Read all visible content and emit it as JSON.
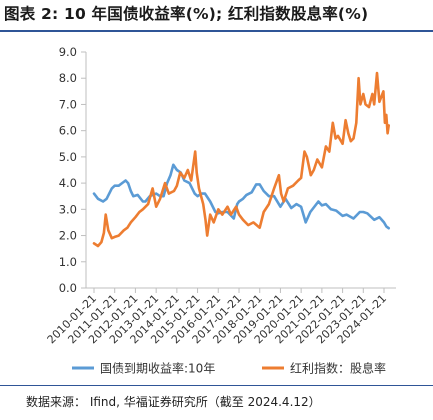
{
  "title": "图表 2: 10 年国债收益率(%); 红利指数股息率(%)",
  "source": "数据来源： Ifind, 华福证券研究所（截至 2024.4.12）",
  "colors": {
    "bond": "#5b9bd5",
    "dividend": "#ed7d31",
    "axis": "#bfbfbf",
    "rule": "#2f5597"
  },
  "chart_data": {
    "type": "line",
    "title": "",
    "xlabel": "",
    "ylabel": "",
    "ylim": [
      0,
      9
    ],
    "yticks": [
      "0.0",
      "1.0",
      "2.0",
      "3.0",
      "4.0",
      "5.0",
      "6.0",
      "7.0",
      "8.0",
      "9.0"
    ],
    "xticks": [
      "2010-01-21",
      "2011-01-21",
      "2012-01-21",
      "2013-01-21",
      "2014-01-21",
      "2015-01-21",
      "2016-01-21",
      "2017-01-21",
      "2018-01-21",
      "2019-01-21",
      "2020-01-21",
      "2021-01-21",
      "2022-01-21",
      "2023-01-21",
      "2024-01-21"
    ],
    "grid": false,
    "legend_position": "bottom",
    "series": [
      {
        "name": "国债到期收益率:10年",
        "color": "#5b9bd5",
        "points": [
          [
            "2010-01-21",
            3.6
          ],
          [
            "2010-04-01",
            3.4
          ],
          [
            "2010-07-01",
            3.3
          ],
          [
            "2010-09-01",
            3.4
          ],
          [
            "2010-12-01",
            3.8
          ],
          [
            "2011-01-21",
            3.9
          ],
          [
            "2011-04-01",
            3.9
          ],
          [
            "2011-06-01",
            4.0
          ],
          [
            "2011-08-01",
            4.1
          ],
          [
            "2011-09-15",
            4.0
          ],
          [
            "2011-11-01",
            3.7
          ],
          [
            "2011-12-15",
            3.5
          ],
          [
            "2012-03-01",
            3.55
          ],
          [
            "2012-06-01",
            3.3
          ],
          [
            "2012-07-15",
            3.3
          ],
          [
            "2012-10-01",
            3.5
          ],
          [
            "2013-01-21",
            3.6
          ],
          [
            "2013-04-01",
            3.5
          ],
          [
            "2013-06-01",
            3.5
          ],
          [
            "2013-08-01",
            4.0
          ],
          [
            "2013-10-01",
            4.3
          ],
          [
            "2013-11-20",
            4.7
          ],
          [
            "2014-01-21",
            4.5
          ],
          [
            "2014-04-01",
            4.4
          ],
          [
            "2014-06-01",
            4.1
          ],
          [
            "2014-09-01",
            4.0
          ],
          [
            "2014-12-01",
            3.6
          ],
          [
            "2015-01-21",
            3.5
          ],
          [
            "2015-04-01",
            3.6
          ],
          [
            "2015-06-01",
            3.6
          ],
          [
            "2015-09-01",
            3.3
          ],
          [
            "2015-12-01",
            2.9
          ],
          [
            "2016-01-21",
            2.85
          ],
          [
            "2016-04-01",
            2.9
          ],
          [
            "2016-07-01",
            2.9
          ],
          [
            "2016-10-20",
            2.65
          ],
          [
            "2016-12-20",
            3.2
          ],
          [
            "2017-01-21",
            3.3
          ],
          [
            "2017-04-01",
            3.4
          ],
          [
            "2017-06-01",
            3.55
          ],
          [
            "2017-09-01",
            3.65
          ],
          [
            "2017-11-20",
            3.95
          ],
          [
            "2018-01-21",
            3.95
          ],
          [
            "2018-04-01",
            3.7
          ],
          [
            "2018-07-01",
            3.5
          ],
          [
            "2018-10-01",
            3.5
          ],
          [
            "2019-01-21",
            3.1
          ],
          [
            "2019-04-20",
            3.4
          ],
          [
            "2019-08-01",
            3.05
          ],
          [
            "2019-11-01",
            3.2
          ],
          [
            "2020-01-21",
            3.1
          ],
          [
            "2020-04-10",
            2.5
          ],
          [
            "2020-07-01",
            2.9
          ],
          [
            "2020-11-20",
            3.3
          ],
          [
            "2021-01-21",
            3.15
          ],
          [
            "2021-04-01",
            3.2
          ],
          [
            "2021-07-01",
            3.0
          ],
          [
            "2021-10-01",
            2.95
          ],
          [
            "2022-01-21",
            2.75
          ],
          [
            "2022-04-01",
            2.8
          ],
          [
            "2022-08-01",
            2.65
          ],
          [
            "2022-11-20",
            2.9
          ],
          [
            "2023-01-21",
            2.9
          ],
          [
            "2023-04-01",
            2.85
          ],
          [
            "2023-08-01",
            2.6
          ],
          [
            "2023-11-01",
            2.7
          ],
          [
            "2024-01-21",
            2.5
          ],
          [
            "2024-03-01",
            2.35
          ],
          [
            "2024-04-12",
            2.28
          ]
        ]
      },
      {
        "name": "红利指数：股息率",
        "color": "#ed7d31",
        "points": [
          [
            "2010-01-21",
            1.7
          ],
          [
            "2010-04-01",
            1.6
          ],
          [
            "2010-06-01",
            1.75
          ],
          [
            "2010-07-15",
            2.1
          ],
          [
            "2010-08-15",
            2.8
          ],
          [
            "2010-10-01",
            2.2
          ],
          [
            "2010-12-01",
            1.9
          ],
          [
            "2011-01-21",
            1.95
          ],
          [
            "2011-04-01",
            2.0
          ],
          [
            "2011-07-01",
            2.2
          ],
          [
            "2011-09-01",
            2.3
          ],
          [
            "2011-11-01",
            2.5
          ],
          [
            "2012-01-21",
            2.7
          ],
          [
            "2012-04-01",
            2.9
          ],
          [
            "2012-06-01",
            3.0
          ],
          [
            "2012-09-01",
            3.2
          ],
          [
            "2012-11-20",
            3.8
          ],
          [
            "2013-01-21",
            3.1
          ],
          [
            "2013-04-01",
            3.4
          ],
          [
            "2013-06-25",
            4.0
          ],
          [
            "2013-09-01",
            3.6
          ],
          [
            "2013-12-01",
            3.7
          ],
          [
            "2014-01-21",
            3.9
          ],
          [
            "2014-03-20",
            4.4
          ],
          [
            "2014-06-01",
            4.2
          ],
          [
            "2014-08-01",
            4.5
          ],
          [
            "2014-10-01",
            4.1
          ],
          [
            "2014-12-10",
            5.2
          ],
          [
            "2015-01-05",
            4.4
          ],
          [
            "2015-02-15",
            3.8
          ],
          [
            "2015-05-01",
            3.2
          ],
          [
            "2015-06-10",
            2.6
          ],
          [
            "2015-07-10",
            2.0
          ],
          [
            "2015-09-01",
            2.8
          ],
          [
            "2015-11-01",
            2.5
          ],
          [
            "2016-01-21",
            3.0
          ],
          [
            "2016-04-01",
            2.8
          ],
          [
            "2016-07-01",
            3.1
          ],
          [
            "2016-09-01",
            2.8
          ],
          [
            "2016-12-01",
            3.1
          ],
          [
            "2017-01-21",
            2.8
          ],
          [
            "2017-04-01",
            2.6
          ],
          [
            "2017-07-01",
            2.4
          ],
          [
            "2017-10-01",
            2.5
          ],
          [
            "2018-01-21",
            2.3
          ],
          [
            "2018-04-01",
            2.9
          ],
          [
            "2018-07-01",
            3.2
          ],
          [
            "2018-10-01",
            3.8
          ],
          [
            "2018-12-25",
            4.3
          ],
          [
            "2019-02-01",
            3.6
          ],
          [
            "2019-03-20",
            3.3
          ],
          [
            "2019-06-01",
            3.8
          ],
          [
            "2019-09-01",
            3.9
          ],
          [
            "2019-12-01",
            4.1
          ],
          [
            "2020-01-21",
            4.2
          ],
          [
            "2020-03-20",
            5.2
          ],
          [
            "2020-05-01",
            5.0
          ],
          [
            "2020-07-10",
            4.3
          ],
          [
            "2020-09-01",
            4.5
          ],
          [
            "2020-11-01",
            4.9
          ],
          [
            "2021-01-21",
            4.6
          ],
          [
            "2021-04-01",
            5.4
          ],
          [
            "2021-06-01",
            5.2
          ],
          [
            "2021-08-01",
            6.3
          ],
          [
            "2021-09-20",
            5.7
          ],
          [
            "2021-11-01",
            5.8
          ],
          [
            "2022-01-21",
            5.5
          ],
          [
            "2022-03-15",
            6.4
          ],
          [
            "2022-05-01",
            5.9
          ],
          [
            "2022-06-15",
            5.6
          ],
          [
            "2022-08-01",
            5.7
          ],
          [
            "2022-09-20",
            6.3
          ],
          [
            "2022-10-31",
            8.0
          ],
          [
            "2022-12-01",
            7.0
          ],
          [
            "2023-01-21",
            7.4
          ],
          [
            "2023-03-01",
            7.0
          ],
          [
            "2023-05-01",
            6.9
          ],
          [
            "2023-07-01",
            7.4
          ],
          [
            "2023-08-01",
            7.0
          ],
          [
            "2023-09-20",
            8.2
          ],
          [
            "2023-11-01",
            7.1
          ],
          [
            "2024-01-10",
            7.5
          ],
          [
            "2024-02-05",
            6.3
          ],
          [
            "2024-03-01",
            6.6
          ],
          [
            "2024-03-25",
            5.9
          ],
          [
            "2024-04-12",
            6.2
          ]
        ]
      }
    ]
  }
}
